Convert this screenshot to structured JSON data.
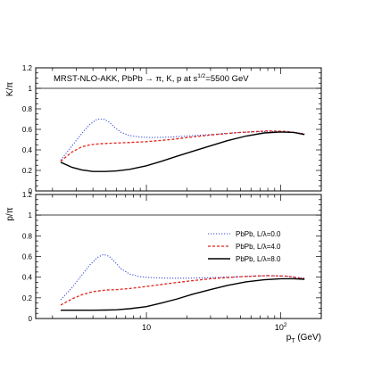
{
  "figure": {
    "annotation_prefix": "MRST-NLO-AKK, PbPb ",
    "annotation_arrow": "→",
    "annotation_mid": " π, K, p at s",
    "annotation_sup": "1/2",
    "annotation_suffix": "=5500 GeV",
    "x_axis": {
      "label_main": "p",
      "label_sub": "T",
      "label_unit": " (GeV)",
      "scale": "log",
      "range": [
        1.5,
        200
      ],
      "ticks": [
        {
          "label": "10",
          "value": 10
        },
        {
          "label": "10",
          "sup": "2",
          "value": 100
        }
      ]
    },
    "colors": {
      "L0": "#3b4fd6",
      "L4": "#e0251b",
      "L8": "#000000"
    }
  },
  "chart_data": [
    {
      "type": "line",
      "panel": "top",
      "ylabel": "K/π",
      "ylim": [
        0,
        1.2
      ],
      "yticks": [
        "0",
        "0.2",
        "0.4",
        "0.6",
        "0.8",
        "1",
        "1.2"
      ],
      "reference_line_y": 1.0,
      "series": [
        {
          "key": "L0",
          "x": [
            2.3,
            2.8,
            3.3,
            3.8,
            4.3,
            4.8,
            5.3,
            5.8,
            6.5,
            7.5,
            9,
            11,
            15,
            20,
            30,
            50,
            80,
            110,
            150
          ],
          "y": [
            0.3,
            0.44,
            0.56,
            0.65,
            0.7,
            0.7,
            0.67,
            0.62,
            0.57,
            0.54,
            0.525,
            0.52,
            0.525,
            0.535,
            0.55,
            0.57,
            0.58,
            0.575,
            0.56
          ]
        },
        {
          "key": "L4",
          "x": [
            2.3,
            2.8,
            3.3,
            3.8,
            4.5,
            5.5,
            7,
            10,
            15,
            20,
            30,
            50,
            80,
            110,
            150
          ],
          "y": [
            0.29,
            0.38,
            0.43,
            0.45,
            0.46,
            0.465,
            0.47,
            0.48,
            0.5,
            0.52,
            0.545,
            0.57,
            0.585,
            0.58,
            0.555
          ]
        },
        {
          "key": "L8",
          "x": [
            2.3,
            2.8,
            3.3,
            4,
            5,
            6,
            7.5,
            10,
            13,
            17,
            22,
            30,
            40,
            55,
            75,
            100,
            125,
            150
          ],
          "y": [
            0.28,
            0.23,
            0.205,
            0.19,
            0.19,
            0.195,
            0.21,
            0.245,
            0.29,
            0.34,
            0.385,
            0.44,
            0.49,
            0.535,
            0.565,
            0.575,
            0.57,
            0.55
          ]
        }
      ]
    },
    {
      "type": "line",
      "panel": "bottom",
      "ylabel": "p/π",
      "ylim": [
        0,
        1.2
      ],
      "yticks": [
        "0",
        "0.2",
        "0.4",
        "0.6",
        "0.8",
        "1",
        "1.2"
      ],
      "reference_line_y": 1.0,
      "legend": {
        "placement": "right",
        "entries": [
          {
            "key": "L0",
            "label": "PbPb, L/λ=0.0",
            "style": "dotted"
          },
          {
            "key": "L4",
            "label": "PbPb, L/λ=4.0",
            "style": "dashed"
          },
          {
            "key": "L8",
            "label": "PbPb, L/λ=8.0",
            "style": "solid"
          }
        ]
      },
      "series": [
        {
          "key": "L0",
          "x": [
            2.3,
            2.8,
            3.3,
            3.8,
            4.3,
            4.8,
            5.3,
            5.8,
            6.5,
            7.5,
            9,
            11,
            15,
            20,
            30,
            50,
            80,
            110,
            150
          ],
          "y": [
            0.18,
            0.3,
            0.42,
            0.52,
            0.59,
            0.62,
            0.6,
            0.55,
            0.48,
            0.43,
            0.405,
            0.395,
            0.39,
            0.39,
            0.395,
            0.405,
            0.415,
            0.41,
            0.39
          ]
        },
        {
          "key": "L4",
          "x": [
            2.3,
            2.8,
            3.3,
            4,
            5,
            6,
            7.5,
            10,
            15,
            20,
            30,
            50,
            80,
            110,
            150
          ],
          "y": [
            0.13,
            0.19,
            0.23,
            0.26,
            0.275,
            0.28,
            0.29,
            0.31,
            0.34,
            0.36,
            0.385,
            0.405,
            0.415,
            0.41,
            0.385
          ]
        },
        {
          "key": "L8",
          "x": [
            2.3,
            3,
            4,
            5,
            6,
            7.5,
            10,
            13,
            17,
            22,
            30,
            40,
            55,
            75,
            100,
            125,
            150
          ],
          "y": [
            0.08,
            0.08,
            0.08,
            0.082,
            0.085,
            0.095,
            0.115,
            0.15,
            0.19,
            0.235,
            0.28,
            0.32,
            0.355,
            0.375,
            0.385,
            0.385,
            0.38
          ]
        }
      ]
    }
  ]
}
